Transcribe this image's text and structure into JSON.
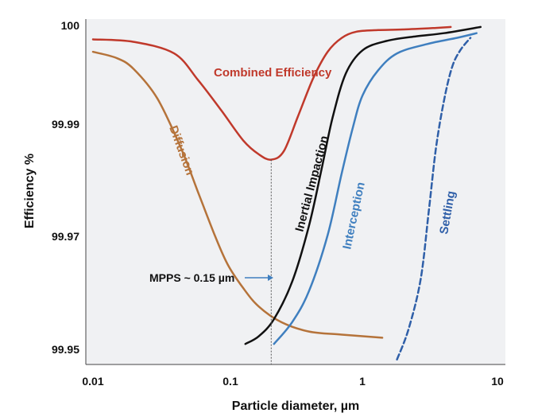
{
  "chart_data": {
    "type": "line",
    "title": "",
    "xlabel": "Particle diameter, µm",
    "ylabel": "Efficiency %",
    "xscale": "log",
    "xlim": [
      0.01,
      10
    ],
    "y_ticks": [
      "99.95",
      "99.97",
      "99.99",
      "100"
    ],
    "x_ticks": [
      "0.01",
      "0.1",
      "1",
      "10"
    ],
    "grid": false,
    "background": "#f0f1f3",
    "series": [
      {
        "name": "Combined Efficiency",
        "color": "#c0392b",
        "style": "solid",
        "points": [
          [
            0.01,
            0.5
          ],
          [
            0.02,
            0.58
          ],
          [
            0.04,
            0.95
          ],
          [
            0.06,
            1.8
          ],
          [
            0.09,
            2.8
          ],
          [
            0.13,
            3.75
          ],
          [
            0.17,
            4.2
          ],
          [
            0.21,
            4.37
          ],
          [
            0.26,
            4.1
          ],
          [
            0.33,
            3.0
          ],
          [
            0.43,
            1.75
          ],
          [
            0.55,
            0.9
          ],
          [
            0.7,
            0.45
          ],
          [
            0.9,
            0.25
          ],
          [
            1.3,
            0.2
          ],
          [
            2.0,
            0.18
          ],
          [
            3.5,
            0.13
          ],
          [
            4.5,
            0.1
          ]
        ]
      },
      {
        "name": "Diffusion",
        "color": "#b5733a",
        "style": "solid",
        "points": [
          [
            0.01,
            0.9
          ],
          [
            0.015,
            1.1
          ],
          [
            0.02,
            1.45
          ],
          [
            0.03,
            2.4
          ],
          [
            0.045,
            4.0
          ],
          [
            0.06,
            5.4
          ],
          [
            0.08,
            6.8
          ],
          [
            0.1,
            7.75
          ],
          [
            0.13,
            8.5
          ],
          [
            0.17,
            9.1
          ],
          [
            0.25,
            9.6
          ],
          [
            0.4,
            9.9
          ],
          [
            0.7,
            10.0
          ],
          [
            1.4,
            10.1
          ]
        ]
      },
      {
        "name": "Inertial Impaction",
        "color": "#111111",
        "style": "solid",
        "points": [
          [
            0.135,
            10.3
          ],
          [
            0.17,
            10.05
          ],
          [
            0.22,
            9.5
          ],
          [
            0.3,
            8.3
          ],
          [
            0.4,
            6.5
          ],
          [
            0.5,
            4.6
          ],
          [
            0.6,
            3.0
          ],
          [
            0.75,
            1.6
          ],
          [
            1.0,
            0.85
          ],
          [
            1.5,
            0.55
          ],
          [
            2.5,
            0.4
          ],
          [
            4.0,
            0.3
          ],
          [
            7.5,
            0.1
          ]
        ]
      },
      {
        "name": "Interception",
        "color": "#3f7fbf",
        "style": "solid",
        "points": [
          [
            0.22,
            10.3
          ],
          [
            0.3,
            9.6
          ],
          [
            0.4,
            8.6
          ],
          [
            0.55,
            6.8
          ],
          [
            0.7,
            4.8
          ],
          [
            0.85,
            3.3
          ],
          [
            1.0,
            2.3
          ],
          [
            1.3,
            1.5
          ],
          [
            1.8,
            0.95
          ],
          [
            3.0,
            0.65
          ],
          [
            5.0,
            0.45
          ],
          [
            7.0,
            0.3
          ]
        ]
      },
      {
        "name": "Settling",
        "color": "#2f5fa8",
        "style": "dashed",
        "points": [
          [
            1.8,
            10.8
          ],
          [
            2.2,
            9.8
          ],
          [
            2.7,
            8.2
          ],
          [
            3.1,
            6.0
          ],
          [
            3.5,
            4.0
          ],
          [
            4.0,
            2.5
          ],
          [
            4.6,
            1.4
          ],
          [
            5.3,
            0.85
          ],
          [
            6.3,
            0.45
          ]
        ]
      }
    ],
    "annotations": [
      {
        "text": "MPPS ~ 0.15 µm",
        "x": 0.21,
        "kind": "vertical-dashed-line"
      }
    ]
  }
}
